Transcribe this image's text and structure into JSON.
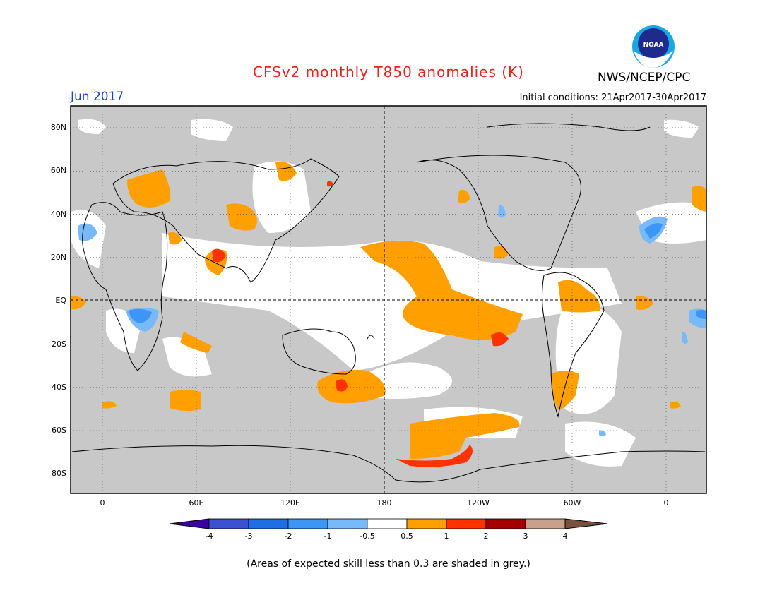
{
  "title": "CFSv2 monthly T850 anomalies (K)",
  "organization": "NWS/NCEP/CPC",
  "logo_text": "NOAA",
  "valid_month": "Jun 2017",
  "initial_conditions": "Initial conditions: 21Apr2017-30Apr2017",
  "footnote": "(Areas of expected skill less than 0.3 are shaded in grey.)",
  "colors": {
    "grey_low_skill": "#c8c8c8",
    "neutral": "#ffffff",
    "pos_0_5_1": "#ffa000",
    "pos_1_2": "#ff3200",
    "neg_0_5_1": "#78b9fa",
    "neg_1_2": "#3c96f5",
    "title": "#e8221c",
    "month": "#1e3fd6"
  },
  "map": {
    "lat_labels": [
      "80N",
      "60N",
      "40N",
      "20N",
      "EQ",
      "20S",
      "40S",
      "60S",
      "80S"
    ],
    "lon_labels": [
      "0",
      "60E",
      "120E",
      "180",
      "120W",
      "60W",
      "0"
    ]
  },
  "colorbar": {
    "labels": [
      "-4",
      "-3",
      "-2",
      "-1",
      "-0.5",
      "0.5",
      "1",
      "2",
      "3",
      "4"
    ],
    "colors": [
      "#3c00a0",
      "#3c50d2",
      "#1e6ee6",
      "#3c96f5",
      "#78b9fa",
      "#ffffff",
      "#ffa000",
      "#ff3200",
      "#a50000",
      "#c8a08c",
      "#7a5040"
    ]
  }
}
